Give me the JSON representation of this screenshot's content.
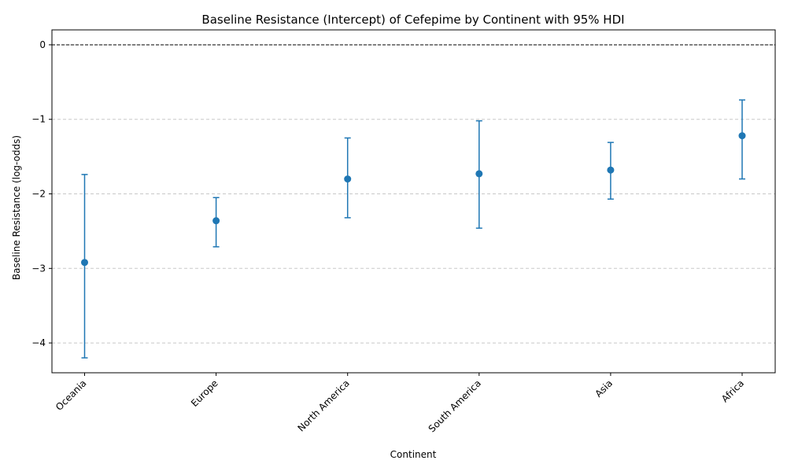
{
  "chart_data": {
    "type": "scatter",
    "title": "Baseline Resistance (Intercept) of Cefepime by Continent with 95% HDI",
    "xlabel": "Continent",
    "ylabel": "Baseline Resistance (log-odds)",
    "categories": [
      "Oceania",
      "Europe",
      "North America",
      "South America",
      "Asia",
      "Africa"
    ],
    "series": [
      {
        "values": [
          -2.92,
          -2.36,
          -1.8,
          -1.73,
          -1.68,
          -1.22
        ],
        "lower": [
          -4.2,
          -2.71,
          -2.32,
          -2.46,
          -2.07,
          -1.8
        ],
        "upper": [
          -1.74,
          -2.05,
          -1.25,
          -1.02,
          -1.31,
          -0.74
        ]
      }
    ],
    "reference_line": 0,
    "yticks": [
      0,
      -1,
      -2,
      -3,
      -4
    ],
    "ytick_labels": [
      "0",
      "−1",
      "−2",
      "−3",
      "−4"
    ],
    "ylim": [
      -4.4,
      0.2
    ],
    "grid": "y-dashed",
    "color": "#1f77b4"
  }
}
